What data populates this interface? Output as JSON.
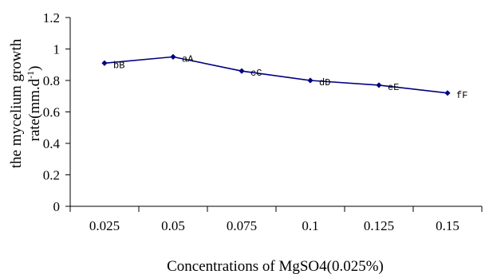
{
  "chart_data": {
    "type": "line",
    "title": "",
    "xlabel": "Concentrations of MgSO4(0.025%)",
    "ylabel_line1": "the mycelium growth",
    "ylabel_line2_prefix": "rate(mm.d",
    "ylabel_line2_sup": "-1",
    "ylabel_line2_suffix": ")",
    "categories": [
      "0.025",
      "0.05",
      "0.075",
      "0.1",
      "0.125",
      "0.15"
    ],
    "values": [
      0.91,
      0.95,
      0.86,
      0.8,
      0.77,
      0.72
    ],
    "point_labels": [
      "bB",
      "aA",
      "cC",
      "dD",
      "eE",
      "fF"
    ],
    "ylim": [
      0,
      1.2
    ],
    "yticks": [
      "0",
      "0.2",
      "0.4",
      "0.6",
      "0.8",
      "1",
      "1.2"
    ],
    "grid": false,
    "legend": "none",
    "line_color": "#000080",
    "marker": "diamond"
  }
}
